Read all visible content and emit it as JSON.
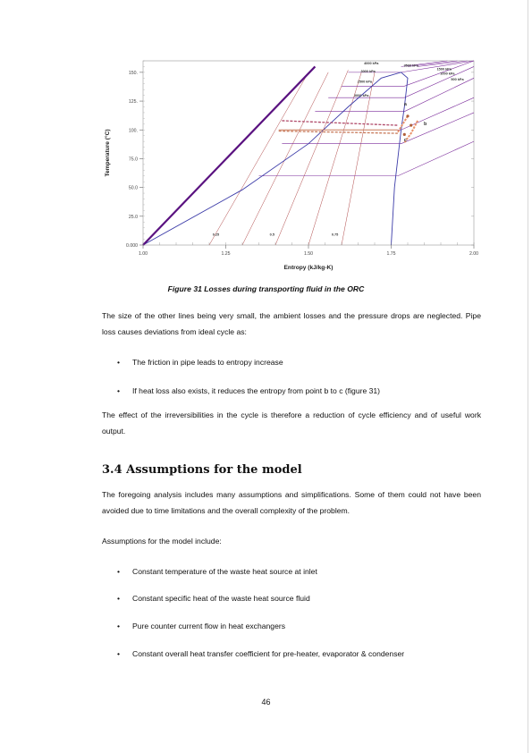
{
  "figure": {
    "chart_data": {
      "type": "line",
      "title": "",
      "xlabel": "Entropy (kJ/kg-K)",
      "ylabel": "Temperature (°C)",
      "xlim": [
        1.0,
        2.0
      ],
      "ylim": [
        0,
        160
      ],
      "x_ticks": [
        "1.00",
        "1.25",
        "1.50",
        "1.75",
        "2.00"
      ],
      "y_ticks": [
        "0.000",
        "25.0",
        "50.0",
        "75.0",
        "100.",
        "125.",
        "150."
      ],
      "isobar_labels": [
        "4000 kPa",
        "3500 kPa",
        "3000 kPa",
        "2500 kPa",
        "2000 kPa",
        "1500 kPa",
        "1000 kPa",
        "500 kPa"
      ],
      "quality_labels": [
        "0.25",
        "0.5",
        "0.75"
      ],
      "point_labels": [
        "a",
        "b",
        "c"
      ],
      "saturation_dome": [
        [
          1.0,
          0
        ],
        [
          1.3,
          48
        ],
        [
          1.5,
          88
        ],
        [
          1.62,
          120
        ],
        [
          1.72,
          145
        ],
        [
          1.78,
          150
        ],
        [
          1.8,
          145
        ],
        [
          1.79,
          120
        ],
        [
          1.78,
          100
        ],
        [
          1.76,
          50
        ],
        [
          1.75,
          0
        ]
      ],
      "cycle": {
        "pump_heating_line": [
          [
            1.0,
            0
          ],
          [
            1.52,
            155
          ]
        ],
        "evaporation_plateau": [
          [
            1.41,
            100
          ],
          [
            1.77,
            100
          ]
        ],
        "loss_path_a": [
          [
            1.8,
            112
          ],
          [
            1.77,
            98
          ]
        ],
        "loss_path_bc": [
          [
            1.83,
            108
          ],
          [
            1.81,
            97
          ],
          [
            1.79,
            89
          ]
        ]
      },
      "grid": false,
      "legend": "none"
    }
  },
  "caption": "Figure 31 Losses during transporting fluid in the ORC",
  "para1": "The size of the other lines being very small, the ambient losses and the pressure drops are neglected. Pipe loss causes deviations from ideal cycle as:",
  "bullets1": [
    "The friction in pipe leads to entropy increase",
    "If heat loss also exists, it reduces the entropy from point b to c (figure 31)"
  ],
  "para2": "The effect of the irreversibilities in the cycle is therefore a reduction of cycle efficiency and of useful work output.",
  "heading": "3.4 Assumptions for the model",
  "para3": "The foregoing analysis includes many assumptions and simplifications. Some of them could not have been avoided due to time limitations and the overall complexity of the problem.",
  "para4": "Assumptions for the model include:",
  "bullets2": [
    "Constant temperature of the waste heat source at inlet",
    "Constant specific heat of the waste heat source fluid",
    "Pure counter current flow in heat exchangers",
    "Constant overall heat transfer coefficient for pre-heater, evaporator & condenser"
  ],
  "bullet_glyph": "•",
  "page_number": "46",
  "colors": {
    "dome": "#3b3ba8",
    "isobar": "#7a2a9a",
    "quality": "#b04a4a",
    "cycle": "#5a1280",
    "loss": "#e9926a",
    "loss_dark": "#b0603a"
  }
}
